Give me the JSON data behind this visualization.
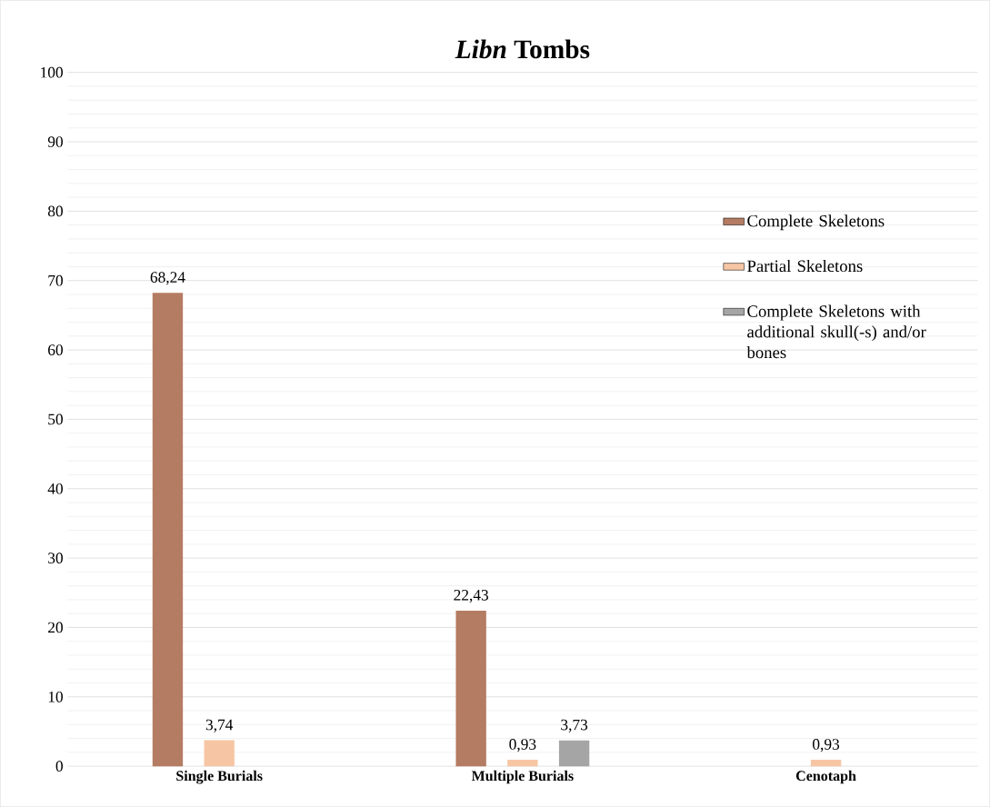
{
  "chart_data": {
    "type": "bar",
    "title": "*Libn* Tombs",
    "categories": [
      "Single Burials",
      "Multiple Burials",
      "Cenotaph"
    ],
    "series": [
      {
        "name": "Complete Skeletons",
        "color": "#b47c62",
        "values": [
          68.24,
          22.43,
          null
        ],
        "value_labels": [
          "68,24",
          "22,43",
          null
        ]
      },
      {
        "name": "Partial Skeletons",
        "color": "#f6c6a4",
        "values": [
          3.74,
          0.93,
          0.93
        ],
        "value_labels": [
          "3,74",
          "0,93",
          "0,93"
        ]
      },
      {
        "name": "Complete Skeletons with additional skull(-s) and/or bones",
        "color": "#a5a5a5",
        "values": [
          null,
          3.73,
          null
        ],
        "value_labels": [
          null,
          "3,73",
          null
        ]
      }
    ],
    "ylim": [
      0,
      100
    ],
    "yticks": [
      0,
      10,
      20,
      30,
      40,
      50,
      60,
      70,
      80,
      90,
      100
    ],
    "grid": "y",
    "legend": "right"
  }
}
